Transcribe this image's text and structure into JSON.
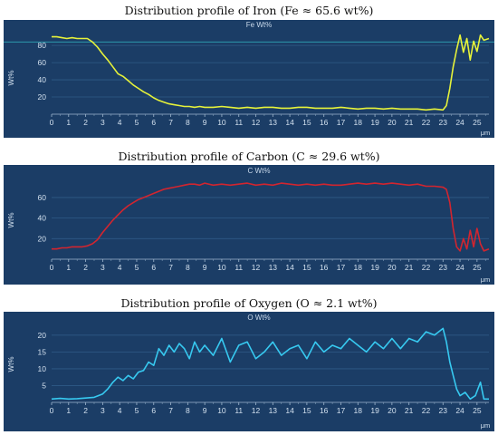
{
  "chart_data": [
    {
      "type": "line",
      "title": "Distribution profile of Iron (Fe ≈ 65.6 wt%)",
      "panel_title": "Fe Wt%",
      "ylabel": "Wt%",
      "xunit": "μm",
      "xlim": [
        0,
        25.7
      ],
      "ylim": [
        0,
        97
      ],
      "xticks": [
        "0",
        "1",
        "2",
        "3",
        "4",
        "5",
        "6",
        "7",
        "8",
        "9",
        "10",
        "11",
        "12",
        "13",
        "14",
        "15",
        "16",
        "17",
        "18",
        "19",
        "20",
        "21",
        "22",
        "23",
        "24",
        "25"
      ],
      "yticks": [
        "20",
        "40",
        "60",
        "80"
      ],
      "line_color": "#e6f23a",
      "reference_line": 84,
      "series": [
        {
          "x": [
            0,
            0.3,
            0.6,
            0.9,
            1.2,
            1.5,
            1.8,
            2.1,
            2.4,
            2.7,
            3.0,
            3.3,
            3.6,
            3.9,
            4.2,
            4.5,
            4.8,
            5.1,
            5.4,
            5.7,
            6.0,
            6.3,
            6.6,
            6.9,
            7.2,
            7.5,
            7.8,
            8.1,
            8.4,
            8.7,
            9,
            9.5,
            10,
            10.5,
            11,
            11.5,
            12,
            12.5,
            13,
            13.5,
            14,
            14.5,
            15,
            15.5,
            16,
            16.5,
            17,
            17.5,
            18,
            18.5,
            19,
            19.5,
            20,
            20.5,
            21,
            21.5,
            22,
            22.5,
            23,
            23.2,
            23.4,
            23.6,
            23.8,
            24,
            24.2,
            24.4,
            24.6,
            24.8,
            25,
            25.2,
            25.4,
            25.7
          ],
          "values": [
            90,
            90,
            89,
            88,
            89,
            88,
            88,
            88,
            84,
            78,
            70,
            63,
            55,
            47,
            44,
            39,
            34,
            30,
            26,
            23,
            19,
            16,
            14,
            12,
            11,
            10,
            9,
            9,
            8,
            9,
            8,
            8,
            9,
            8,
            7,
            8,
            7,
            8,
            8,
            7,
            7,
            8,
            8,
            7,
            7,
            7,
            8,
            7,
            6,
            7,
            7,
            6,
            7,
            6,
            6,
            6,
            5,
            6,
            5,
            10,
            30,
            55,
            75,
            92,
            72,
            88,
            63,
            85,
            73,
            92,
            86,
            88
          ]
        }
      ]
    },
    {
      "type": "line",
      "title": "Distribution profile of Carbon (C ≈ 29.6 wt%)",
      "panel_title": "C Wt%",
      "ylabel": "Wt%",
      "xunit": "μm",
      "xlim": [
        0,
        25.7
      ],
      "ylim": [
        0,
        82
      ],
      "xticks": [
        "0",
        "1",
        "2",
        "3",
        "4",
        "5",
        "6",
        "7",
        "8",
        "9",
        "10",
        "11",
        "12",
        "13",
        "14",
        "15",
        "16",
        "17",
        "18",
        "19",
        "20",
        "21",
        "22",
        "23",
        "24",
        "25"
      ],
      "yticks": [
        "20",
        "40",
        "60"
      ],
      "line_color": "#d2252f",
      "series": [
        {
          "x": [
            0,
            0.3,
            0.6,
            0.9,
            1.2,
            1.5,
            1.8,
            2.1,
            2.4,
            2.7,
            3.0,
            3.3,
            3.6,
            3.9,
            4.2,
            4.5,
            4.8,
            5.1,
            5.4,
            5.7,
            6.0,
            6.3,
            6.6,
            6.9,
            7.2,
            7.5,
            7.8,
            8.1,
            8.4,
            8.7,
            9,
            9.5,
            10,
            10.5,
            11,
            11.5,
            12,
            12.5,
            13,
            13.5,
            14,
            14.5,
            15,
            15.5,
            16,
            16.5,
            17,
            17.5,
            18,
            18.5,
            19,
            19.5,
            20,
            20.5,
            21,
            21.5,
            22,
            22.5,
            23,
            23.2,
            23.4,
            23.6,
            23.8,
            24,
            24.2,
            24.4,
            24.6,
            24.8,
            25,
            25.2,
            25.4,
            25.7
          ],
          "values": [
            10,
            10,
            11,
            11,
            12,
            12,
            12,
            13,
            15,
            19,
            26,
            32,
            38,
            43,
            48,
            52,
            55,
            58,
            60,
            62,
            64,
            66,
            68,
            69,
            70,
            71,
            72,
            73,
            73,
            72,
            74,
            72,
            73,
            72,
            73,
            74,
            72,
            73,
            72,
            74,
            73,
            72,
            73,
            72,
            73,
            72,
            72,
            73,
            74,
            73,
            74,
            73,
            74,
            73,
            72,
            73,
            71,
            71,
            70,
            68,
            55,
            30,
            12,
            8,
            20,
            10,
            28,
            12,
            30,
            15,
            8,
            10
          ]
        }
      ]
    },
    {
      "type": "line",
      "title": "Distribution profile of Oxygen (O ≈ 2.1 wt%)",
      "panel_title": "O Wt%",
      "ylabel": "Wt%",
      "xunit": "μm",
      "xlim": [
        0,
        25.7
      ],
      "ylim": [
        0,
        24
      ],
      "xticks": [
        "0",
        "1",
        "2",
        "3",
        "4",
        "5",
        "6",
        "7",
        "8",
        "9",
        "10",
        "11",
        "12",
        "13",
        "14",
        "15",
        "16",
        "17",
        "18",
        "19",
        "20",
        "21",
        "22",
        "23",
        "24",
        "25"
      ],
      "yticks": [
        "5",
        "10",
        "15",
        "20"
      ],
      "line_color": "#37c9f0",
      "series": [
        {
          "x": [
            0,
            0.5,
            1,
            1.5,
            2,
            2.5,
            3,
            3.3,
            3.6,
            3.9,
            4.2,
            4.5,
            4.8,
            5.1,
            5.4,
            5.7,
            6.0,
            6.3,
            6.6,
            6.9,
            7.2,
            7.5,
            7.8,
            8.1,
            8.4,
            8.7,
            9,
            9.5,
            10,
            10.5,
            11,
            11.5,
            12,
            12.5,
            13,
            13.5,
            14,
            14.5,
            15,
            15.5,
            16,
            16.5,
            17,
            17.5,
            18,
            18.5,
            19,
            19.5,
            20,
            20.5,
            21,
            21.5,
            22,
            22.5,
            23,
            23.2,
            23.4,
            23.6,
            23.8,
            24,
            24.3,
            24.6,
            24.9,
            25.2,
            25.4,
            25.7
          ],
          "values": [
            1,
            1.2,
            1,
            1.1,
            1.3,
            1.5,
            2.5,
            4,
            6,
            7.5,
            6.5,
            8,
            7,
            9,
            9.5,
            12,
            11,
            16,
            14,
            17,
            15,
            17.5,
            16,
            13,
            18,
            15,
            17,
            14,
            19,
            12,
            17,
            18,
            13,
            15,
            18,
            14,
            16,
            17,
            13,
            18,
            15,
            17,
            16,
            19,
            17,
            15,
            18,
            16,
            19,
            16,
            19,
            18,
            21,
            20,
            22,
            18,
            12,
            8,
            4,
            2,
            3,
            1,
            2,
            6,
            1,
            1
          ]
        }
      ]
    }
  ]
}
